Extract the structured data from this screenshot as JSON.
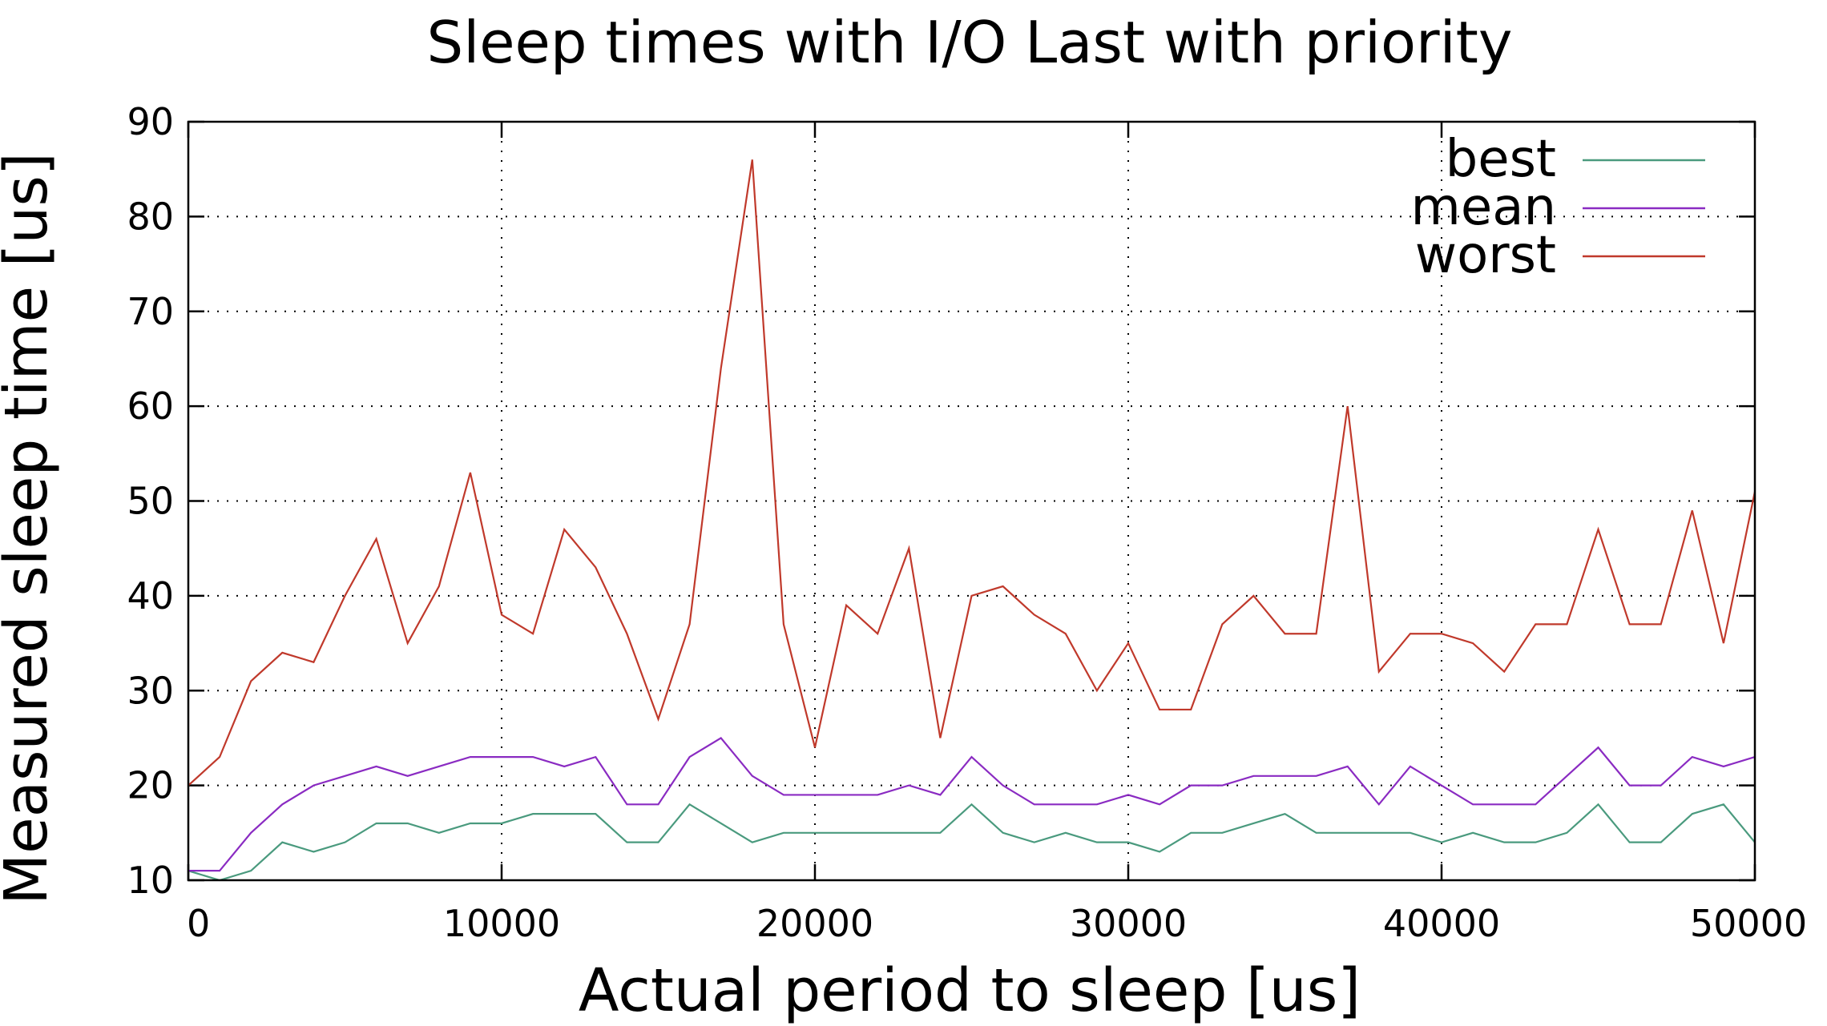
{
  "chart_data": {
    "type": "line",
    "title": "Sleep times with I/O Last with priority",
    "xlabel": "Actual period to sleep  [us]",
    "ylabel": "Measured sleep time  [us]",
    "xlim": [
      0,
      50000
    ],
    "ylim": [
      10,
      90
    ],
    "xticks": [
      0,
      10000,
      20000,
      30000,
      40000,
      50000
    ],
    "xtick_labels": [
      "0",
      "10000",
      "20000",
      "30000",
      "40000",
      "50000"
    ],
    "yticks": [
      10,
      20,
      30,
      40,
      50,
      60,
      70,
      80,
      90
    ],
    "ytick_labels": [
      "10",
      "20",
      "30",
      "40",
      "50",
      "60",
      "70",
      "80",
      "90"
    ],
    "grid": true,
    "legend_position": "top-right",
    "x": [
      0,
      1000,
      2000,
      3000,
      4000,
      5000,
      6000,
      7000,
      8000,
      9000,
      10000,
      11000,
      12000,
      13000,
      14000,
      15000,
      16000,
      17000,
      18000,
      19000,
      20000,
      21000,
      22000,
      23000,
      24000,
      25000,
      26000,
      27000,
      28000,
      29000,
      30000,
      31000,
      32000,
      33000,
      34000,
      35000,
      36000,
      37000,
      38000,
      39000,
      40000,
      41000,
      42000,
      43000,
      44000,
      45000,
      46000,
      47000,
      48000,
      49000,
      50000
    ],
    "series": [
      {
        "name": "best",
        "color": "#4a9a7e",
        "values": [
          11,
          10,
          11,
          14,
          13,
          14,
          16,
          16,
          15,
          16,
          16,
          17,
          17,
          17,
          14,
          14,
          18,
          16,
          14,
          15,
          15,
          15,
          15,
          15,
          15,
          18,
          15,
          14,
          15,
          14,
          14,
          13,
          15,
          15,
          16,
          17,
          15,
          15,
          15,
          15,
          14,
          15,
          14,
          14,
          15,
          18,
          14,
          14,
          17,
          18,
          14
        ]
      },
      {
        "name": "mean",
        "color": "#8a2bc2",
        "values": [
          11,
          11,
          15,
          18,
          20,
          21,
          22,
          21,
          22,
          23,
          23,
          23,
          22,
          23,
          18,
          18,
          23,
          25,
          21,
          19,
          19,
          19,
          19,
          20,
          19,
          23,
          20,
          18,
          18,
          18,
          19,
          18,
          20,
          20,
          21,
          21,
          21,
          22,
          18,
          22,
          20,
          18,
          18,
          18,
          21,
          24,
          20,
          20,
          23,
          22,
          23
        ]
      },
      {
        "name": "worst",
        "color": "#c0392b",
        "values": [
          20,
          23,
          31,
          34,
          33,
          40,
          46,
          35,
          41,
          53,
          38,
          36,
          47,
          43,
          36,
          27,
          37,
          64,
          86,
          37,
          24,
          39,
          36,
          45,
          25,
          40,
          41,
          38,
          36,
          30,
          35,
          28,
          28,
          37,
          40,
          36,
          36,
          60,
          32,
          36,
          36,
          35,
          32,
          37,
          37,
          47,
          37,
          37,
          49,
          35,
          51
        ]
      }
    ]
  }
}
